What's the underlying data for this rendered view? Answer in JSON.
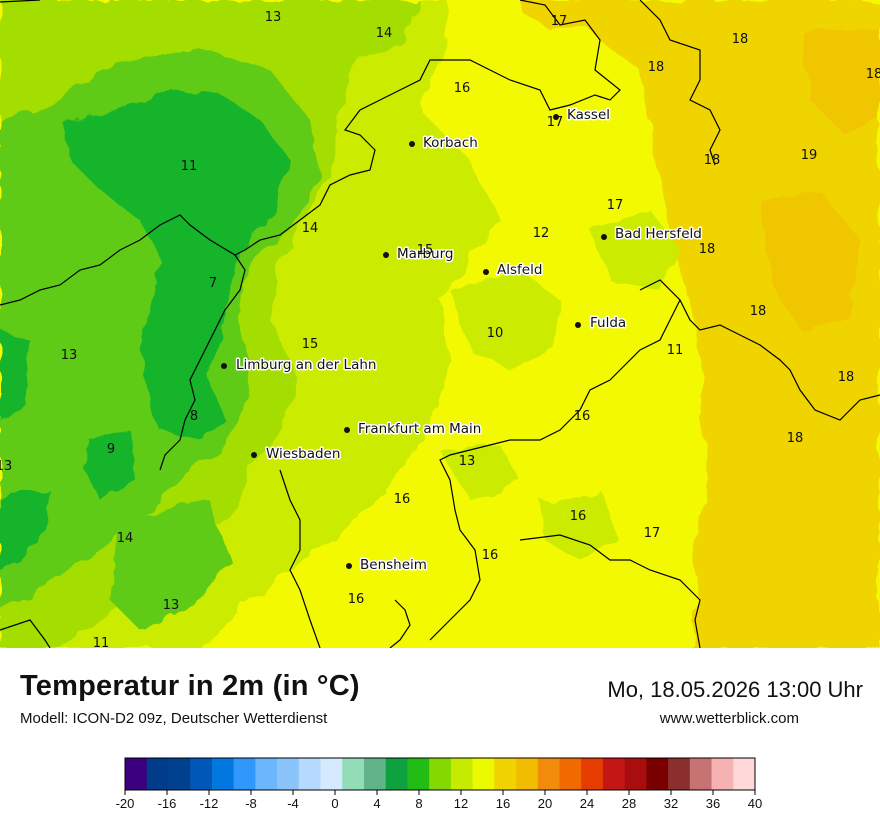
{
  "map": {
    "cities": [
      {
        "name": "Kassel"
      },
      {
        "name": "Korbach"
      },
      {
        "name": "Marburg"
      },
      {
        "name": "Alsfeld"
      },
      {
        "name": "Bad Hersfeld"
      },
      {
        "name": "Fulda"
      },
      {
        "name": "Limburg an der Lahn"
      },
      {
        "name": "Frankfurt am Main"
      },
      {
        "name": "Wiesbaden"
      },
      {
        "name": "Bensheim"
      }
    ],
    "temperature_labels": [
      "13",
      "14",
      "17",
      "18",
      "16",
      "17",
      "18",
      "19",
      "11",
      "14",
      "15",
      "12",
      "17",
      "18",
      "7",
      "10",
      "18",
      "15",
      "11",
      "13",
      "8",
      "16",
      "9",
      "13",
      "18",
      "13",
      "16",
      "16",
      "17",
      "14",
      "16",
      "16",
      "13",
      "11",
      "11"
    ],
    "colors": {
      "dark_green": "#19b42a",
      "green": "#5ecb13",
      "yellow_green": "#a3de00",
      "lime": "#cbeb00",
      "yellow": "#f2f900",
      "gold": "#f0d400",
      "orange_gold": "#f0c600"
    }
  },
  "footer": {
    "title": "Temperatur in 2m (in °C)",
    "subtitle": "Modell: ICON-D2 09z, Deutscher Wetterdienst",
    "datetime": "Mo, 18.05.2026 13:00 Uhr",
    "website": "www.wetterblick.com"
  },
  "legend": {
    "colors": [
      "#3a007f",
      "#003c8a",
      "#00418f",
      "#0057b8",
      "#0078e0",
      "#2f98fa",
      "#6bb6fc",
      "#8ac4fb",
      "#b6daff",
      "#d5eaff",
      "#92dcb7",
      "#60b488",
      "#0da140",
      "#22bd14",
      "#84d800",
      "#c4eb00",
      "#ecfa00",
      "#f0d300",
      "#f2bd00",
      "#f28b0c",
      "#f06a00",
      "#e63c00",
      "#c51616",
      "#a80e0e",
      "#7a0000",
      "#8b2e2e",
      "#c77373",
      "#f6b2b2",
      "#ffd9d9"
    ],
    "ticks": [
      "-20",
      "-16",
      "-12",
      "-8",
      "-4",
      "0",
      "4",
      "8",
      "12",
      "16",
      "20",
      "24",
      "28",
      "32",
      "36",
      "40"
    ]
  }
}
